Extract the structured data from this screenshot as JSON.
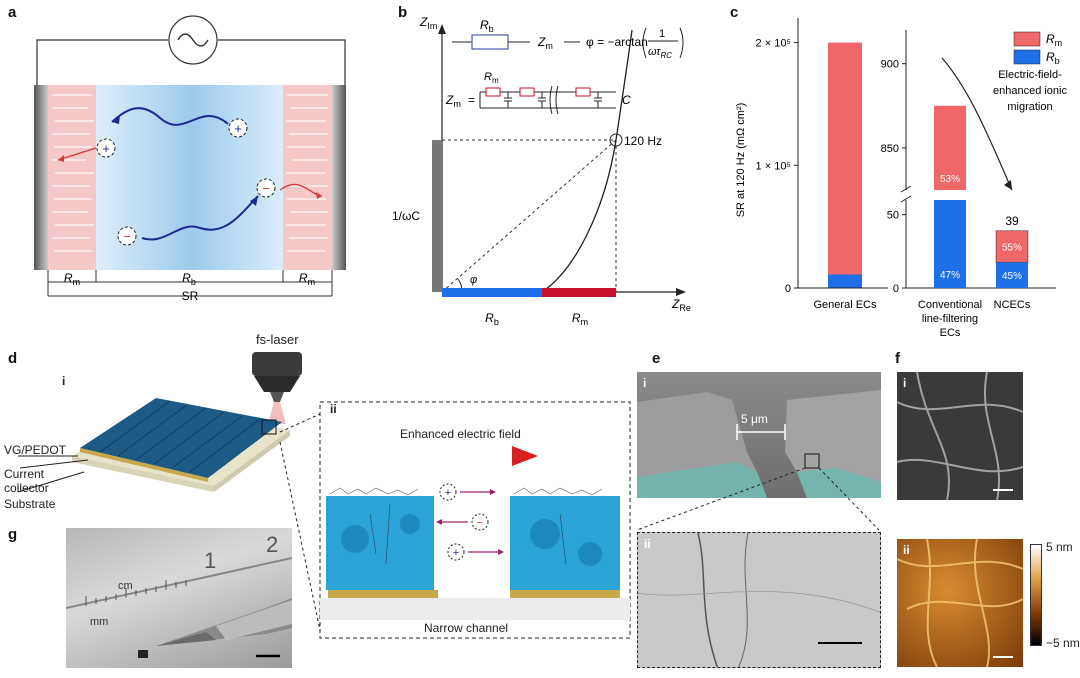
{
  "panel_labels": {
    "a": "a",
    "b": "b",
    "c": "c",
    "d": "d",
    "e": "e",
    "f": "f",
    "g": "g"
  },
  "a": {
    "r_m_left": "R",
    "r_m_sub": "m",
    "r_b": "R",
    "r_b_sub": "b",
    "r_m_right": "R",
    "sr": "SR",
    "plus": "+",
    "minus": "−"
  },
  "b": {
    "z_im": "Z",
    "z_im_sub": "Im",
    "z_re": "Z",
    "z_re_sub": "Re",
    "one_over_omega_c": "1/ωC",
    "freq_label": "120 Hz",
    "phi": "φ",
    "rb": "R",
    "rb_sub": "b",
    "rm": "R",
    "rm_sub": "m",
    "zm_eq": "Z",
    "zm_sub": "m",
    "phi_eq": "φ = −arctan",
    "frac_num": "1",
    "frac_den": "ωτ",
    "frac_den_sub": "RC",
    "zm_def": "Z",
    "zm_def_sub": "m",
    "equals": "=",
    "c_label": "C",
    "legend_rb": "R",
    "legend_rb_sub": "b",
    "legend_rm": "R",
    "legend_rm_sub": "m"
  },
  "chart_data": {
    "type": "bar",
    "ylabel": "SR at 120 Hz (mΩ cm²)",
    "categories": [
      "General ECs",
      "Conventional line-filtering ECs",
      "NCECs"
    ],
    "series": [
      {
        "name": "Rm",
        "values": [
          189000,
          464,
          21.5
        ]
      },
      {
        "name": "Rb",
        "values": [
          11000,
          411,
          17.5
        ]
      }
    ],
    "totals": [
      200000,
      875,
      39
    ],
    "percent_labels": {
      "conventional_rm": "53%",
      "conventional_rb": "47%",
      "ncec_rm": "55%",
      "ncec_rb": "45%"
    },
    "left_ticks": [
      "0",
      "1 × 10⁵",
      "2 × 10⁵"
    ],
    "right_upper_ticks": [
      "850",
      "900"
    ],
    "right_lower_ticks": [
      "0",
      "50"
    ],
    "legend": [
      {
        "label": "R",
        "sub": "m",
        "color": "#ef6767"
      },
      {
        "label": "R",
        "sub": "b",
        "color": "#1f6fe8"
      }
    ],
    "ncec_total_label": "39",
    "annotation": "Electric-field-enhanced ionic migration",
    "annotation_lines": [
      "Electric-field-",
      "enhanced ionic",
      "migration"
    ],
    "xlabels": [
      "General ECs",
      "Conventional",
      "line-filtering",
      "ECs",
      "NCECs"
    ],
    "colors": {
      "rm": "#ef6767",
      "rb": "#1f6fe8"
    }
  },
  "d": {
    "fs_laser": "fs-laser",
    "sub_i": "i",
    "sub_ii": "ii",
    "vg_pedot": "VG/PEDOT",
    "current": "Current",
    "collector": "collector",
    "substrate": "Substrate",
    "enhanced_field": "Enhanced electric field",
    "narrow_channel": "Narrow channel"
  },
  "e": {
    "sub_i": "i",
    "sub_ii": "ii",
    "scale": "5 μm"
  },
  "f": {
    "sub_i": "i",
    "sub_ii": "ii",
    "cb_top": "5 nm",
    "cb_bottom": "−5 nm"
  },
  "g": {
    "cm": "cm",
    "mm": "mm",
    "num1": "1",
    "num2": "2"
  }
}
